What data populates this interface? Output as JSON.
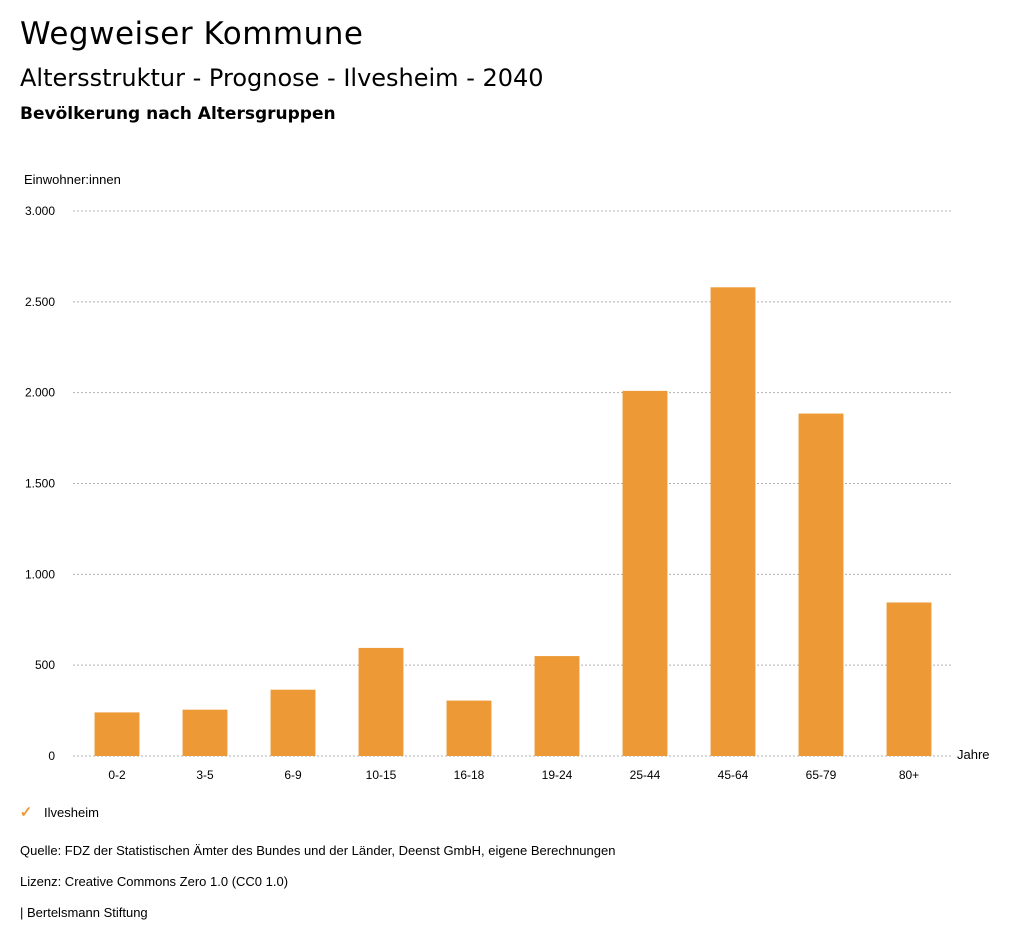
{
  "header": {
    "title": "Wegweiser Kommune",
    "subtitle": "Altersstruktur - Prognose - Ilvesheim - 2040",
    "subsubtitle": "Bevölkerung nach Altersgruppen"
  },
  "chart_data": {
    "type": "bar",
    "ylabel": "Einwohner:innen",
    "xlabel": "Jahre",
    "categories": [
      "0-2",
      "3-5",
      "6-9",
      "10-15",
      "16-18",
      "19-24",
      "25-44",
      "45-64",
      "65-79",
      "80+"
    ],
    "series": [
      {
        "name": "Ilvesheim",
        "values": [
          240,
          255,
          365,
          595,
          305,
          550,
          2010,
          2580,
          1885,
          845
        ]
      }
    ],
    "ylim": [
      0,
      3000
    ],
    "yticks": [
      0,
      500,
      1000,
      1500,
      2000,
      2500,
      3000
    ],
    "ytick_labels": [
      "0",
      "500",
      "1.000",
      "1.500",
      "2.000",
      "2.500",
      "3.000"
    ],
    "grid": true,
    "color": "#ED9A36"
  },
  "legend": {
    "label": "Ilvesheim",
    "icon": "check-icon"
  },
  "footer": {
    "source": "Quelle: FDZ der Statistischen Ämter des Bundes und der Länder, Deenst GmbH, eigene Berechnungen",
    "license": "Lizenz: Creative Commons Zero 1.0 (CC0 1.0)",
    "publisher": "| Bertelsmann Stiftung"
  }
}
